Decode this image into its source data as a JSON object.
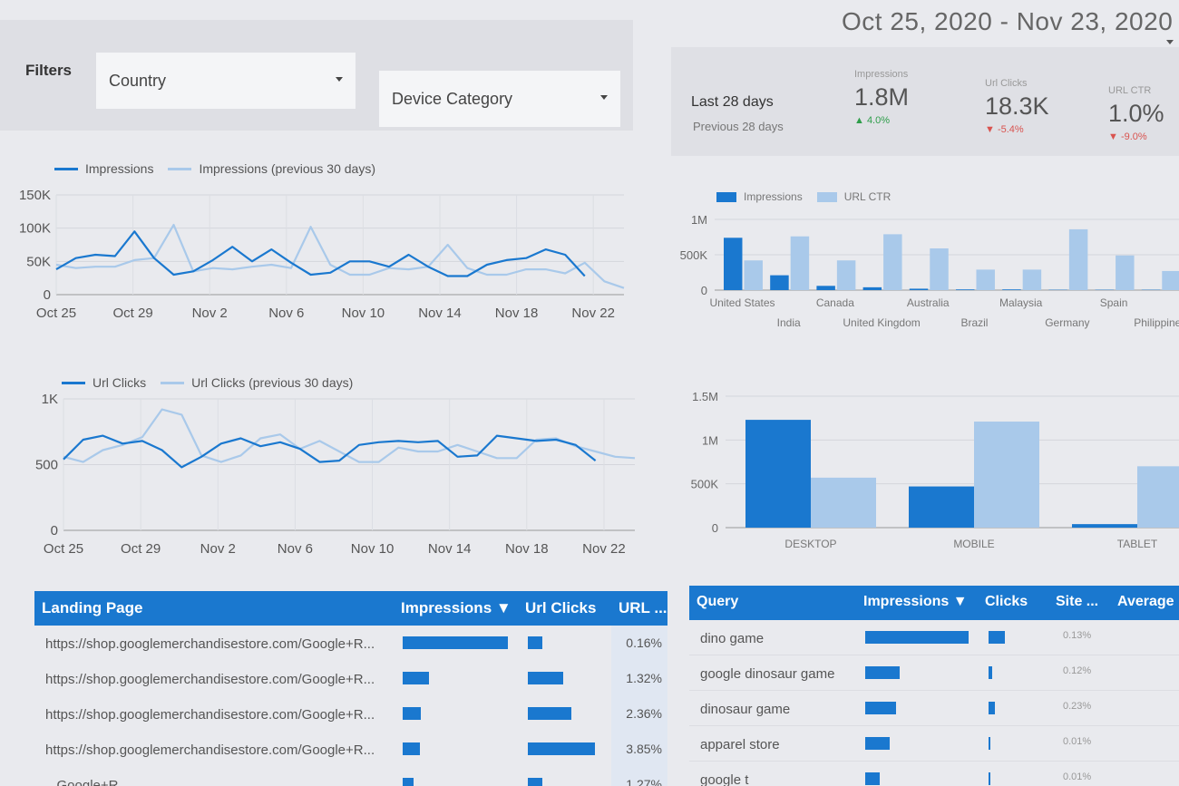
{
  "filters": {
    "label": "Filters",
    "country": "Country",
    "device_category": "Device Category"
  },
  "date_range": "Oct 25, 2020 - Nov 23, 2020",
  "summary": {
    "period": "Last 28 days",
    "previous": "Previous 28 days",
    "metrics": [
      {
        "label": "Impressions",
        "value": "1.8M",
        "delta": "▲ 4.0%",
        "dir": "up"
      },
      {
        "label": "Url Clicks",
        "value": "18.3K",
        "delta": "▼ -5.4%",
        "dir": "down"
      },
      {
        "label": "URL CTR",
        "value": "1.0%",
        "delta": "▼ -9.0%",
        "dir": "down"
      }
    ]
  },
  "colors": {
    "primary": "#1a78cf",
    "secondary": "#a9c9ea",
    "header": "#1a78cf"
  },
  "chart_data": [
    {
      "type": "line",
      "legend": [
        "Impressions",
        "Impressions (previous 30 days)"
      ],
      "x_ticks": [
        "Oct 25",
        "Oct 29",
        "Nov 2",
        "Nov 6",
        "Nov 10",
        "Nov 14",
        "Nov 18",
        "Nov 22"
      ],
      "y_ticks": [
        "150K",
        "100K",
        "50K",
        "0"
      ],
      "ylim": [
        0,
        150000
      ],
      "series": [
        {
          "name": "Impressions",
          "values": [
            38000,
            55000,
            60000,
            58000,
            95000,
            55000,
            30000,
            35000,
            52000,
            72000,
            50000,
            68000,
            48000,
            30000,
            33000,
            50000,
            50000,
            42000,
            60000,
            42000,
            28000,
            28000,
            45000,
            52000,
            55000,
            68000,
            60000,
            28000
          ]
        },
        {
          "name": "Impressions (previous 30 days)",
          "values": [
            45000,
            40000,
            42000,
            42000,
            52000,
            55000,
            105000,
            35000,
            40000,
            38000,
            42000,
            45000,
            40000,
            102000,
            45000,
            30000,
            30000,
            40000,
            38000,
            42000,
            75000,
            40000,
            30000,
            30000,
            38000,
            38000,
            32000,
            48000,
            20000,
            10000
          ]
        }
      ]
    },
    {
      "type": "line",
      "legend": [
        "Url Clicks",
        "Url Clicks (previous 30 days)"
      ],
      "x_ticks": [
        "Oct 25",
        "Oct 29",
        "Nov 2",
        "Nov 6",
        "Nov 10",
        "Nov 14",
        "Nov 18",
        "Nov 22"
      ],
      "y_ticks": [
        "1K",
        "500",
        "0"
      ],
      "ylim": [
        0,
        1000
      ],
      "series": [
        {
          "name": "Url Clicks",
          "values": [
            540,
            690,
            720,
            660,
            680,
            610,
            480,
            560,
            660,
            700,
            640,
            670,
            620,
            520,
            530,
            650,
            670,
            680,
            670,
            680,
            560,
            570,
            720,
            700,
            680,
            690,
            650,
            530
          ]
        },
        {
          "name": "Url Clicks (previous 30 days)",
          "values": [
            560,
            520,
            610,
            650,
            710,
            920,
            880,
            570,
            520,
            570,
            700,
            730,
            620,
            680,
            600,
            520,
            520,
            630,
            600,
            600,
            650,
            600,
            550,
            550,
            690,
            700,
            640,
            600,
            560,
            550
          ]
        }
      ]
    },
    {
      "type": "bar",
      "legend": [
        "Impressions",
        "URL CTR"
      ],
      "categories": [
        "United States",
        "India",
        "Canada",
        "United Kingdom",
        "Australia",
        "Brazil",
        "Malaysia",
        "Germany",
        "Spain",
        "Philippines"
      ],
      "y_ticks": [
        "1M",
        "500K",
        "0"
      ],
      "ylim": [
        0,
        1000000
      ],
      "series": [
        {
          "name": "Impressions",
          "values": [
            740000,
            210000,
            60000,
            40000,
            20000,
            10000,
            10000,
            5000,
            5000,
            5000
          ]
        },
        {
          "name": "URL CTR",
          "values": [
            420000,
            760000,
            420000,
            790000,
            590000,
            290000,
            290000,
            860000,
            490000,
            270000
          ]
        }
      ]
    },
    {
      "type": "bar",
      "categories": [
        "DESKTOP",
        "MOBILE",
        "TABLET"
      ],
      "y_ticks": [
        "1.5M",
        "1M",
        "500K",
        "0"
      ],
      "ylim": [
        0,
        1500000
      ],
      "series": [
        {
          "values": [
            1230000,
            470000,
            40000
          ]
        },
        {
          "values": [
            570000,
            1210000,
            700000
          ]
        }
      ]
    }
  ],
  "landing_table": {
    "headers": [
      "Landing Page",
      "Impressions ▼",
      "Url Clicks",
      "URL ..."
    ],
    "rows": [
      {
        "page": "https://shop.googlemerchandisestore.com/Google+R...",
        "impressions": 1.0,
        "clicks": 0.2,
        "ctr": "0.16%"
      },
      {
        "page": "https://shop.googlemerchandisestore.com/Google+R...",
        "impressions": 0.25,
        "clicks": 0.5,
        "ctr": "1.32%"
      },
      {
        "page": "https://shop.googlemerchandisestore.com/Google+R...",
        "impressions": 0.17,
        "clicks": 0.62,
        "ctr": "2.36%"
      },
      {
        "page": "https://shop.googlemerchandisestore.com/Google+R...",
        "impressions": 0.16,
        "clicks": 0.95,
        "ctr": "3.85%"
      },
      {
        "page": "...Google+R...",
        "impressions": 0.1,
        "clicks": 0.2,
        "ctr": "1.27%"
      }
    ]
  },
  "query_table": {
    "headers": [
      "Query",
      "Impressions ▼",
      "Clicks",
      "Site ...",
      "Average Po..."
    ],
    "rows": [
      {
        "query": "dino game",
        "impressions": 1.0,
        "clicks": 0.9,
        "ctr": "0.13%"
      },
      {
        "query": "google dinosaur game",
        "impressions": 0.33,
        "clicks": 0.2,
        "ctr": "0.12%"
      },
      {
        "query": "dinosaur game",
        "impressions": 0.3,
        "clicks": 0.35,
        "ctr": "0.23%"
      },
      {
        "query": "apparel store",
        "impressions": 0.24,
        "clicks": 0.05,
        "ctr": "0.01%"
      },
      {
        "query": "google t",
        "impressions": 0.14,
        "clicks": 0.05,
        "ctr": "0.01%"
      }
    ]
  }
}
